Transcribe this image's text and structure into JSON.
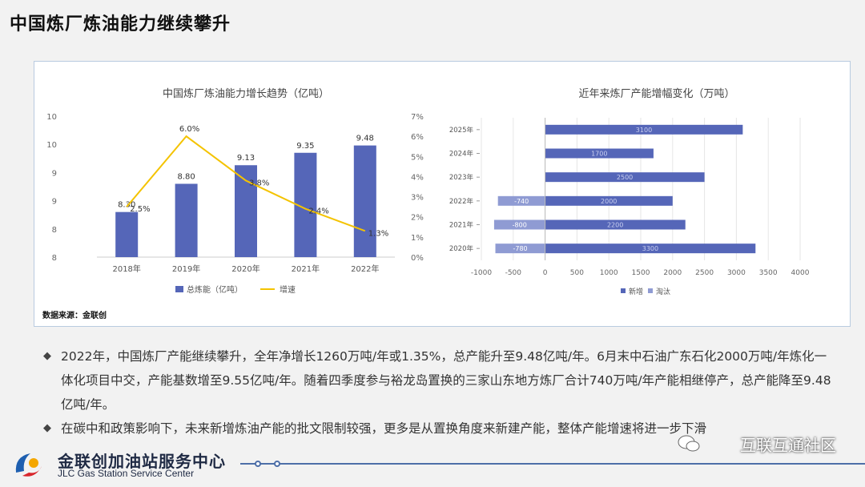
{
  "page": {
    "title": "中国炼厂炼油能力继续攀升",
    "source": "数据来源：金联创",
    "bullets": [
      "2022年，中国炼厂产能继续攀升，全年净增长1260万吨/年或1.35%，总产能升至9.48亿吨/年。6月末中石油广东石化2000万吨/年炼化一体化项目中交，产能基数增至9.55亿吨/年。随着四季度参与裕龙岛置换的三家山东地方炼厂合计740万吨/年产能相继停产，总产能降至9.48亿吨/年。",
      "在碳中和政策影响下，未来新增炼油产能的批文限制较强，更多是从置换角度来新建产能，整体产能增速将进一步下滑"
    ],
    "footer": {
      "name_cn": "金联创加油站服务中心",
      "name_en": "JLC Gas Station Service Center"
    },
    "watermark": "互联互通社区"
  },
  "colors": {
    "bar": "#5566b8",
    "line": "#f4c300",
    "bar_light": "#8f9bd3",
    "footer_blue": "#4d6fa8",
    "logo_red": "#d8262c"
  },
  "chart_data": [
    {
      "type": "bar",
      "title": "中国炼厂炼油能力增长趋势（亿吨）",
      "categories": [
        "2018年",
        "2019年",
        "2020年",
        "2021年",
        "2022年"
      ],
      "series": [
        {
          "name": "总炼能（亿吨）",
          "type": "bar",
          "axis": "left",
          "values": [
            8.3,
            8.8,
            9.13,
            9.35,
            9.48
          ],
          "labels": [
            "8.30",
            "8.80",
            "9.13",
            "9.35",
            "9.48"
          ]
        },
        {
          "name": "增速",
          "type": "line",
          "axis": "right",
          "values": [
            2.5,
            6.0,
            3.8,
            2.4,
            1.3
          ],
          "labels": [
            "2.5%",
            "6.0%",
            "3.8%",
            "2.4%",
            "1.3%"
          ]
        }
      ],
      "ylim": [
        7.5,
        10.0
      ],
      "left_ticks": [
        "8",
        "8",
        "9",
        "9",
        "10",
        "10"
      ],
      "ylim_right": [
        0,
        7
      ],
      "right_ticks": [
        "0%",
        "1%",
        "2%",
        "3%",
        "4%",
        "5%",
        "6%",
        "7%"
      ],
      "legend": "bottom"
    },
    {
      "type": "bar",
      "orientation": "horizontal",
      "stacked": true,
      "title": "近年来炼厂产能增幅变化（万吨）",
      "categories": [
        "2025年",
        "2024年",
        "2023年",
        "2022年",
        "2021年",
        "2020年"
      ],
      "series": [
        {
          "name": "新增",
          "values": [
            3100,
            1700,
            2500,
            2000,
            2200,
            3300
          ],
          "labels": [
            "3100",
            "1700",
            "2500",
            "2000",
            "2200",
            "3300"
          ]
        },
        {
          "name": "淘汰",
          "values": [
            0,
            0,
            0,
            -740,
            -800,
            -780
          ],
          "labels": [
            "",
            "",
            "",
            "-740",
            "-800",
            "-780"
          ]
        }
      ],
      "xlim": [
        -1000,
        4000
      ],
      "xticks": [
        "-1000",
        "-500",
        "0",
        "500",
        "1000",
        "1500",
        "2000",
        "2500",
        "3000",
        "3500",
        "4000"
      ],
      "legend": "bottom"
    }
  ]
}
